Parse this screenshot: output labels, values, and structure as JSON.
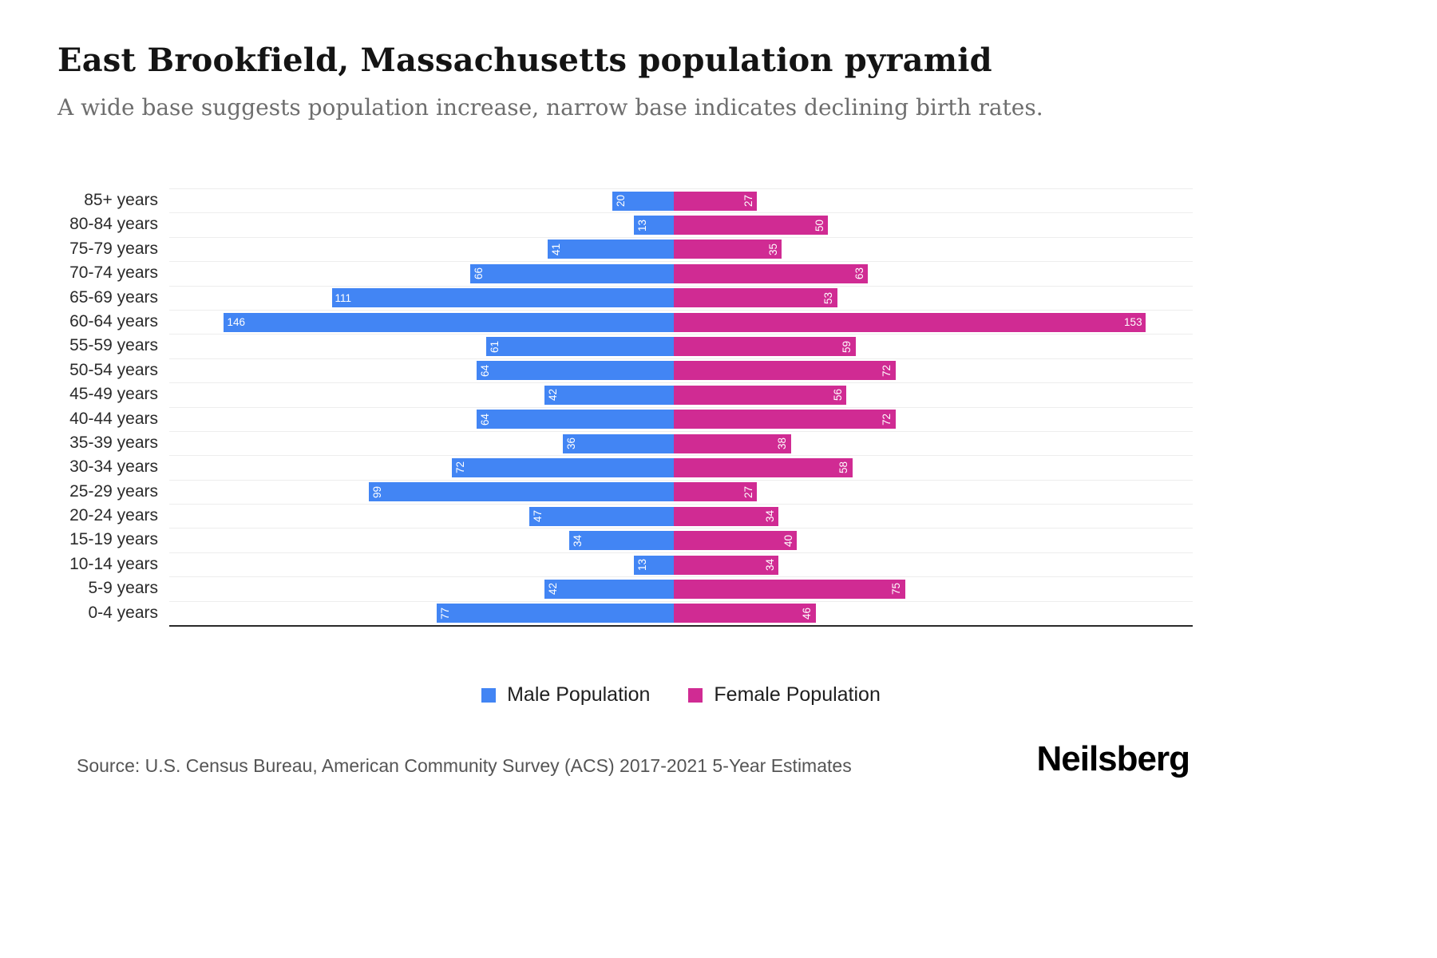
{
  "title": "East Brookfield, Massachusetts population pyramid",
  "subtitle": "A wide base suggests population increase, narrow base indicates declining birth rates.",
  "source": "Source: U.S. Census Bureau, American Community Survey (ACS) 2017-2021 5-Year Estimates",
  "logo": "Neilsberg",
  "chart_data": {
    "type": "bar",
    "variant": "population-pyramid",
    "title": "East Brookfield, Massachusetts population pyramid",
    "categories": [
      "85+ years",
      "80-84 years",
      "75-79 years",
      "70-74 years",
      "65-69 years",
      "60-64 years",
      "55-59 years",
      "50-54 years",
      "45-49 years",
      "40-44 years",
      "35-39 years",
      "30-34 years",
      "25-29 years",
      "20-24 years",
      "15-19 years",
      "10-14 years",
      "5-9 years",
      "0-4 years"
    ],
    "series": [
      {
        "name": "Male Population",
        "side": "left",
        "color": "#4285F4",
        "values": [
          20,
          13,
          41,
          66,
          111,
          146,
          61,
          64,
          42,
          64,
          36,
          72,
          99,
          47,
          34,
          13,
          42,
          77
        ]
      },
      {
        "name": "Female Population",
        "side": "right",
        "color": "#D02B93",
        "values": [
          27,
          50,
          35,
          63,
          53,
          153,
          59,
          72,
          56,
          72,
          38,
          58,
          27,
          34,
          40,
          34,
          75,
          46
        ]
      }
    ],
    "value_labels": "inside-end",
    "grid": true,
    "legend_position": "bottom",
    "xlim_each_side": [
      0,
      163
    ]
  }
}
